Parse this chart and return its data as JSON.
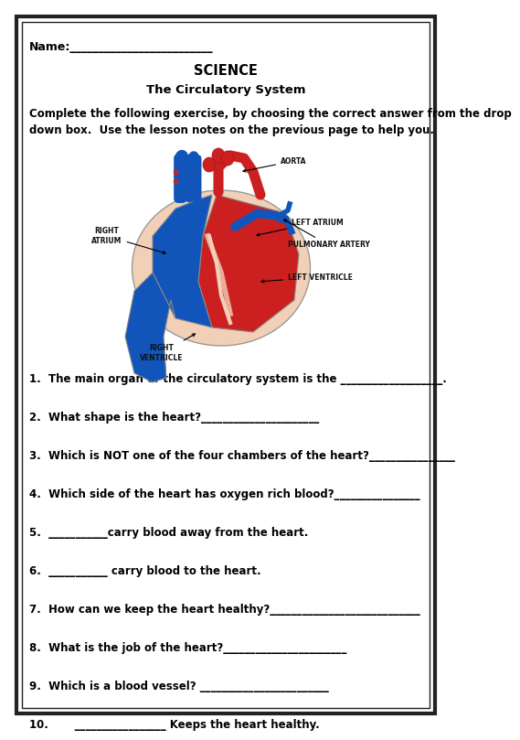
{
  "title_main": "SCIENCE",
  "title_sub": "The Circulatory System",
  "name_label": "Name:_________________________",
  "instructions": "Complete the following exercise, by choosing the correct answer from the drop\ndown box.  Use the lesson notes on the previous page to help you.",
  "questions": [
    "1.  The main organ of the circulatory system is the ___________________.",
    "2.  What shape is the heart?______________________",
    "3.  Which is NOT one of the four chambers of the heart?________________",
    "4.  Which side of the heart has oxygen rich blood?________________",
    "5.  ___________carry blood away from the heart.",
    "6.  ___________ carry blood to the heart.",
    "7.  How can we keep the heart healthy?____________________________",
    "8.  What is the job of the heart?_______________________",
    "9.  Which is a blood vessel? ________________________",
    "10.       _________________ Keeps the heart healthy."
  ],
  "bg_color": "#ffffff",
  "border_color": "#222222",
  "text_color": "#000000",
  "fig_width": 4.74,
  "fig_height": 7.78
}
